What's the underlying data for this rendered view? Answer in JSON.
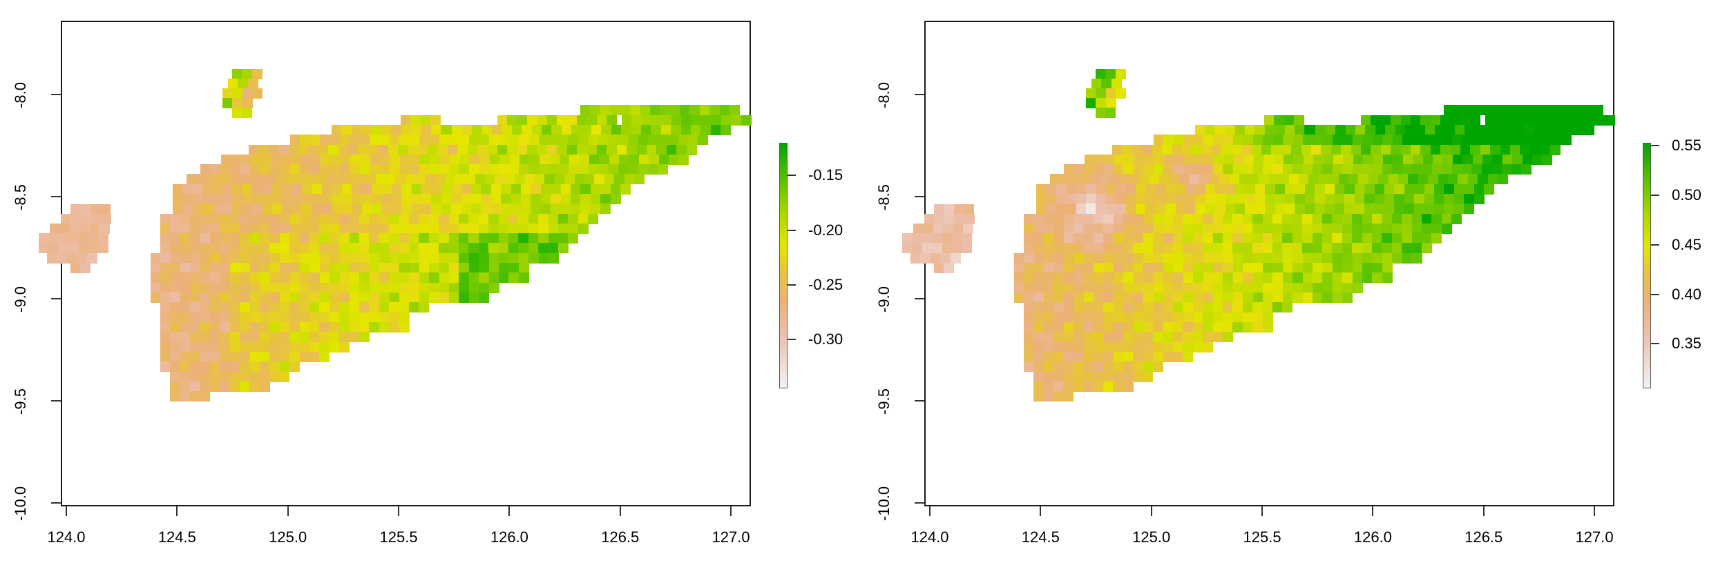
{
  "chart_data": [
    {
      "type": "heatmap",
      "title": "",
      "xlabel": "",
      "ylabel": "",
      "xlim": [
        123.98,
        127.4
      ],
      "ylim": [
        -10.0,
        -7.63
      ],
      "x_ticks": [
        "124.0",
        "124.5",
        "125.0",
        "125.5",
        "126.0",
        "126.5",
        "127.0"
      ],
      "y_ticks": [
        "-8.0",
        "-8.5",
        "-9.0",
        "-9.5",
        "-10.0"
      ],
      "legend": {
        "type": "colorbar",
        "range": [
          -0.345,
          -0.12
        ],
        "ticks": [
          "-0.15",
          "-0.20",
          "-0.25",
          "-0.30"
        ],
        "colors": [
          "#f2f2f2",
          "#ecb176",
          "#e6e600",
          "#63c600",
          "#00a600"
        ]
      },
      "description": "Raster map of Timor island; values mostly around -0.30 to -0.25 in the west, rising to -0.15 in the central/east (greenest near 126.4E, -8.95S)"
    },
    {
      "type": "heatmap",
      "title": "",
      "xlabel": "",
      "ylabel": "",
      "xlim": [
        123.98,
        127.4
      ],
      "ylim": [
        -10.0,
        -7.63
      ],
      "x_ticks": [
        "124.0",
        "124.5",
        "125.0",
        "125.5",
        "126.0",
        "126.5",
        "127.0"
      ],
      "y_ticks": [
        "-8.0",
        "-8.5",
        "-9.0",
        "-9.5",
        "-10.0"
      ],
      "legend": {
        "type": "colorbar",
        "range": [
          0.305,
          0.553
        ],
        "ticks": [
          "0.55",
          "0.50",
          "0.45",
          "0.40",
          "0.35"
        ],
        "colors": [
          "#f2f2f2",
          "#ecb176",
          "#e6e600",
          "#63c600",
          "#00a600"
        ]
      },
      "description": "Raster map of Timor island; low values (~0.32) in the west-central highlands, highest (~0.55) in the east near 126.8E, -8.6S"
    }
  ],
  "panels": [
    {
      "x_ticks": [
        "124.0",
        "124.5",
        "125.0",
        "125.5",
        "126.0",
        "126.5",
        "127.0"
      ],
      "y_ticks": [
        "-8.0",
        "-8.5",
        "-9.0",
        "-9.5",
        "-10.0"
      ],
      "legend_ticks": [
        "-0.15",
        "-0.20",
        "-0.25",
        "-0.30"
      ]
    },
    {
      "x_ticks": [
        "124.0",
        "124.5",
        "125.0",
        "125.5",
        "126.0",
        "126.5",
        "127.0"
      ],
      "y_ticks": [
        "-8.0",
        "-8.5",
        "-9.0",
        "-9.5",
        "-10.0"
      ],
      "legend_ticks": [
        "0.55",
        "0.50",
        "0.45",
        "0.40",
        "0.35"
      ]
    }
  ],
  "palette": [
    "#f0ecec",
    "#ecc4ba",
    "#ebb59a",
    "#ebb07c",
    "#e8b45a",
    "#e6c23c",
    "#e4d42a",
    "#e3e300",
    "#cce000",
    "#aad800",
    "#8ed200",
    "#74ca00",
    "#5cc200",
    "#46bb00",
    "#2cb300",
    "#00a600"
  ],
  "rasters": [
    {
      "rows": [
        "r0 c38:4 5 5 7 6 9 10 11 12 4",
        "r0 c0:",
        "r1 c37:5 11 10 10 7 7 11 5",
        "r2 c36:5 8 9 9 7 4",
        "r3 c35:10 7 9 8 5 4",
        "r4 c36:12 10 8 4"
      ],
      "note": "abbreviated"
    }
  ]
}
